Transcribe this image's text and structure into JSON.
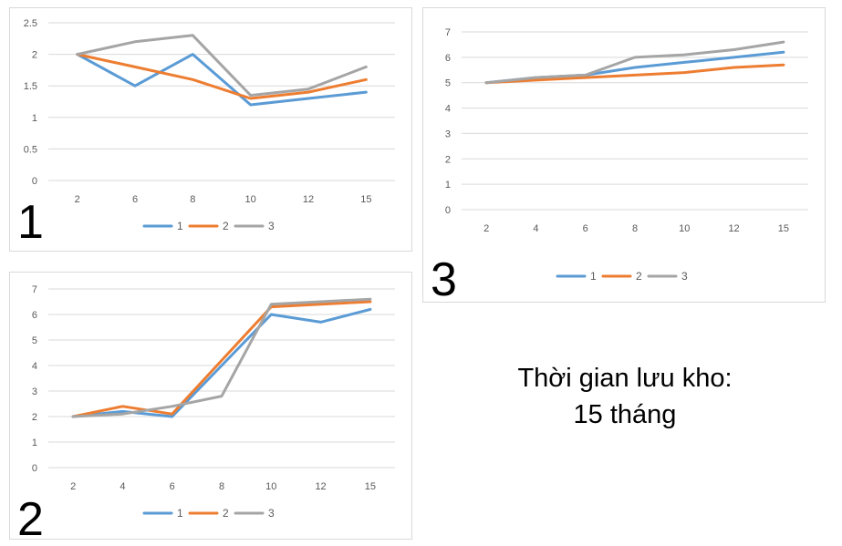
{
  "colors": {
    "series_1": "#5b9bd5",
    "series_2": "#ed7d31",
    "series_3": "#a5a5a5",
    "grid": "#d9d9d9"
  },
  "caption": {
    "line1": "Thời gian lưu kho:",
    "line2": "15 tháng"
  },
  "chart_data": [
    {
      "type": "line",
      "panel_label": "1",
      "categories": [
        "2",
        "6",
        "8",
        "10",
        "12",
        "15"
      ],
      "ylim": [
        0,
        2.5
      ],
      "yticks": [
        "0",
        "0.5",
        "1",
        "1.5",
        "2",
        "2.5"
      ],
      "grid": true,
      "legend": "bottom",
      "series": [
        {
          "name": "1",
          "values": [
            2.0,
            1.5,
            2.0,
            1.2,
            1.3,
            1.4
          ]
        },
        {
          "name": "2",
          "values": [
            2.0,
            1.8,
            1.6,
            1.3,
            1.4,
            1.6
          ]
        },
        {
          "name": "3",
          "values": [
            2.0,
            2.2,
            2.3,
            1.35,
            1.45,
            1.8
          ]
        }
      ]
    },
    {
      "type": "line",
      "panel_label": "2",
      "categories": [
        "2",
        "4",
        "6",
        "8",
        "10",
        "12",
        "15"
      ],
      "ylim": [
        0,
        7
      ],
      "yticks": [
        "0",
        "1",
        "2",
        "3",
        "4",
        "5",
        "6",
        "7"
      ],
      "grid": true,
      "legend": "bottom",
      "series": [
        {
          "name": "1",
          "values": [
            2.0,
            2.2,
            2.0,
            4.0,
            6.0,
            5.7,
            6.2
          ]
        },
        {
          "name": "2",
          "values": [
            2.0,
            2.4,
            2.1,
            4.2,
            6.3,
            6.4,
            6.5
          ]
        },
        {
          "name": "3",
          "values": [
            2.0,
            2.1,
            2.4,
            2.8,
            6.4,
            6.5,
            6.6
          ]
        }
      ]
    },
    {
      "type": "line",
      "panel_label": "3",
      "categories": [
        "2",
        "4",
        "6",
        "8",
        "10",
        "12",
        "15"
      ],
      "ylim": [
        0,
        7
      ],
      "yticks": [
        "0",
        "1",
        "2",
        "3",
        "4",
        "5",
        "6",
        "7"
      ],
      "grid": true,
      "legend": "bottom",
      "series": [
        {
          "name": "1",
          "values": [
            5.0,
            5.2,
            5.3,
            5.6,
            5.8,
            6.0,
            6.2
          ]
        },
        {
          "name": "2",
          "values": [
            5.0,
            5.1,
            5.2,
            5.3,
            5.4,
            5.6,
            5.7
          ]
        },
        {
          "name": "3",
          "values": [
            5.0,
            5.2,
            5.3,
            6.0,
            6.1,
            6.3,
            6.6
          ]
        }
      ]
    }
  ]
}
